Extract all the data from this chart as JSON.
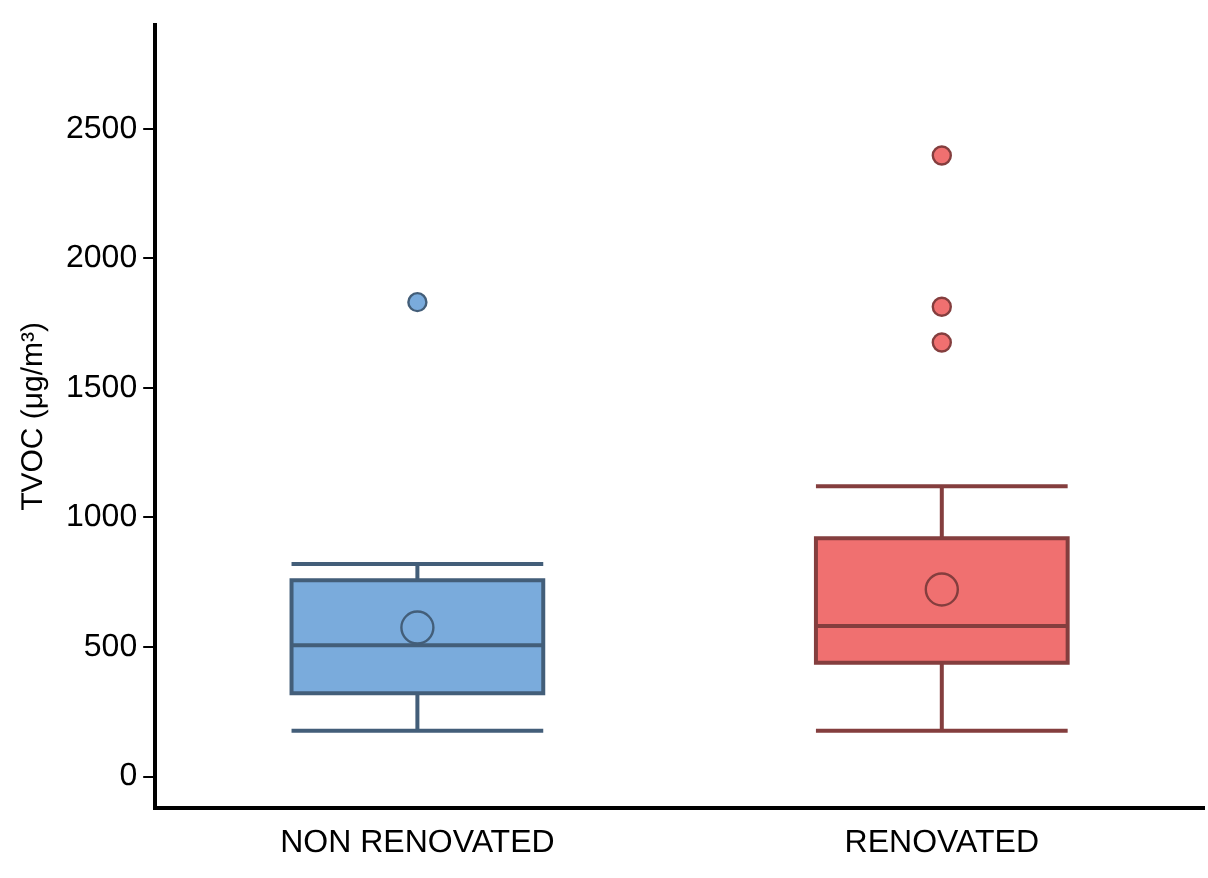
{
  "chart_data": {
    "type": "box",
    "ylabel": "TVOC (μg/m³)",
    "categories": [
      "NON RENOVATED",
      "RENOVATED"
    ],
    "colors": [
      "#7aabdc",
      "#f07070"
    ],
    "boxes": [
      {
        "low": 177,
        "q1": 321,
        "median": 507,
        "q3": 758,
        "high": 820,
        "mean": 575,
        "outliers": [
          1831
        ]
      },
      {
        "low": 177,
        "q1": 439,
        "median": 581,
        "q3": 920,
        "high": 1120,
        "mean": 722,
        "outliers": [
          2397,
          1813,
          1675
        ]
      }
    ],
    "ylim": [
      -120,
      2900
    ],
    "yticks": [
      0,
      500,
      1000,
      1500,
      2000,
      2500
    ],
    "grid": false,
    "legend": false
  }
}
